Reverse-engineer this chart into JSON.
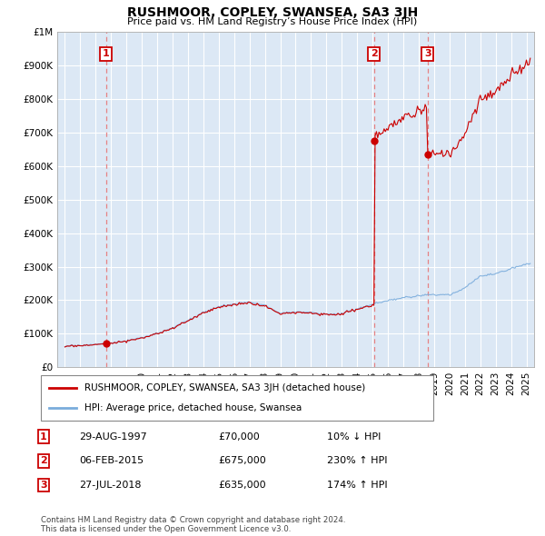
{
  "title": "RUSHMOOR, COPLEY, SWANSEA, SA3 3JH",
  "subtitle": "Price paid vs. HM Land Registry’s House Price Index (HPI)",
  "legend_line1": "RUSHMOOR, COPLEY, SWANSEA, SA3 3JH (detached house)",
  "legend_line2": "HPI: Average price, detached house, Swansea",
  "footnote": "Contains HM Land Registry data © Crown copyright and database right 2024.\nThis data is licensed under the Open Government Licence v3.0.",
  "transactions": [
    {
      "num": 1,
      "date": "29-AUG-1997",
      "price": 70000,
      "pct": "10%",
      "dir": "↓"
    },
    {
      "num": 2,
      "date": "06-FEB-2015",
      "price": 675000,
      "pct": "230%",
      "dir": "↑"
    },
    {
      "num": 3,
      "date": "27-JUL-2018",
      "price": 635000,
      "pct": "174%",
      "dir": "↑"
    }
  ],
  "sale_dates_decimal": [
    1997.66,
    2015.09,
    2018.57
  ],
  "sale_prices": [
    70000,
    675000,
    635000
  ],
  "red_line_color": "#cc0000",
  "blue_line_color": "#7aacdc",
  "marker_color": "#cc0000",
  "dashed_color": "#e87070",
  "plot_bg_color": "#dce8f5",
  "ylim": [
    0,
    1000000
  ],
  "xlim_start": 1994.5,
  "xlim_end": 2025.5
}
